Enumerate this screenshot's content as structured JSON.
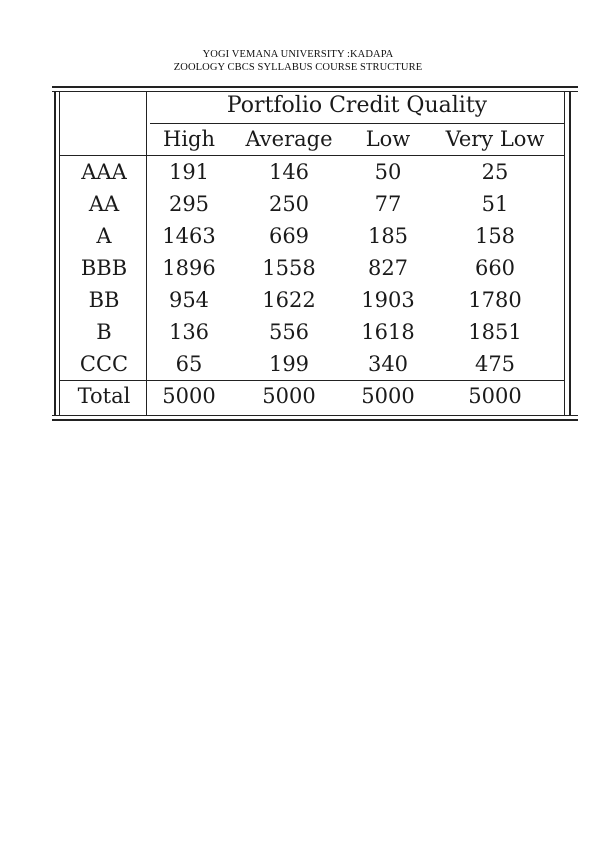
{
  "document": {
    "header_line1": "YOGI VEMANA UNIVERSITY :KADAPA",
    "header_line2": "ZOOLOGY CBCS SYLLABUS COURSE STRUCTURE"
  },
  "table": {
    "group_header": "Portfolio Credit Quality",
    "columns": [
      "High",
      "Average",
      "Low",
      "Very Low"
    ],
    "rows": [
      {
        "label": "AAA",
        "values": [
          "191",
          "146",
          "50",
          "25"
        ]
      },
      {
        "label": "AA",
        "values": [
          "295",
          "250",
          "77",
          "51"
        ]
      },
      {
        "label": "A",
        "values": [
          "1463",
          "669",
          "185",
          "158"
        ]
      },
      {
        "label": "BBB",
        "values": [
          "1896",
          "1558",
          "827",
          "660"
        ]
      },
      {
        "label": "BB",
        "values": [
          "954",
          "1622",
          "1903",
          "1780"
        ]
      },
      {
        "label": "B",
        "values": [
          "136",
          "556",
          "1618",
          "1851"
        ]
      },
      {
        "label": "CCC",
        "values": [
          "65",
          "199",
          "340",
          "475"
        ]
      }
    ],
    "total": {
      "label": "Total",
      "values": [
        "5000",
        "5000",
        "5000",
        "5000"
      ]
    }
  }
}
